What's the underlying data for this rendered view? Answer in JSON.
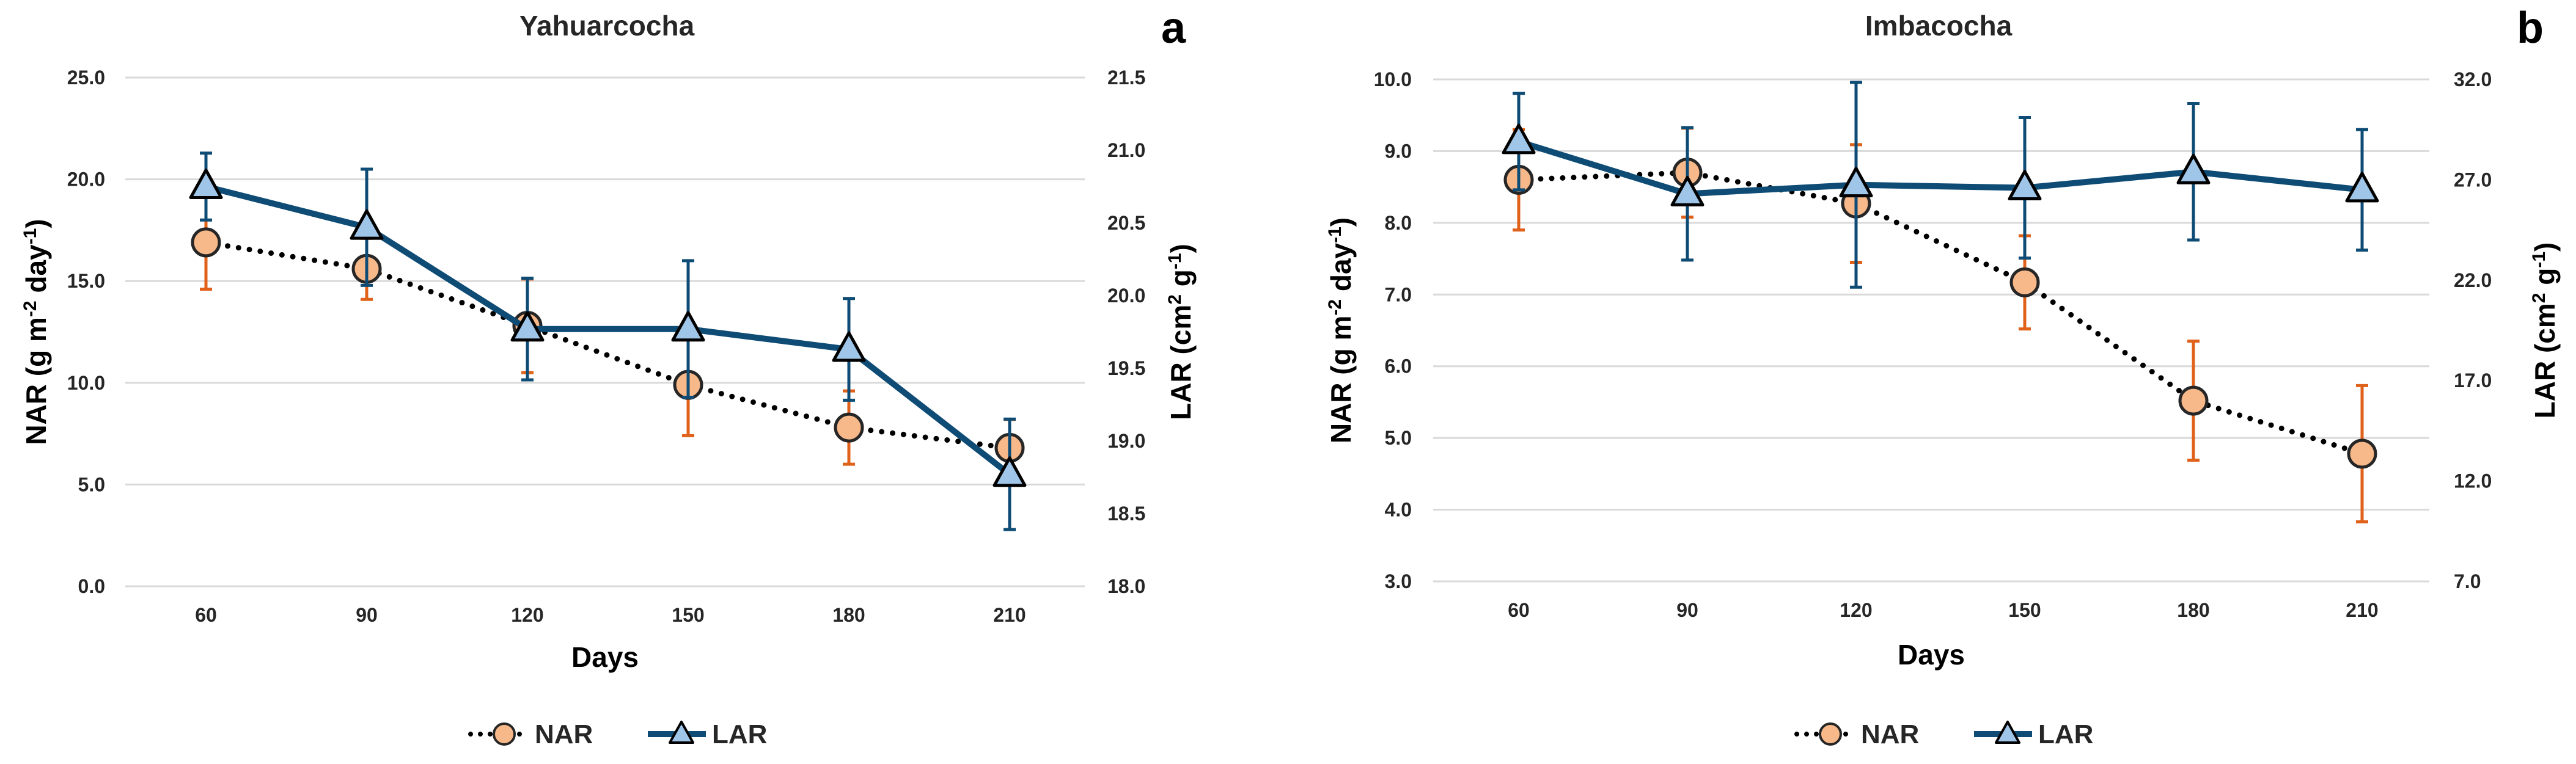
{
  "chart_data": [
    {
      "type": "line",
      "title": "Yahuarcocha",
      "panel_label": "a",
      "xlabel": "Days",
      "ylabel_left": {
        "main": "NAR (g m",
        "sup1": "-2",
        "mid": " day",
        "sup2": "-1",
        "end": ")"
      },
      "ylabel_right": {
        "main": "LAR (cm",
        "sup1": "2",
        "mid": " g",
        "sup2": "-1",
        "end": ")"
      },
      "categories": [
        "60",
        "90",
        "120",
        "150",
        "180",
        "210"
      ],
      "y_left": {
        "min": 0,
        "max": 25,
        "ticks": [
          "0.0",
          "5.0",
          "10.0",
          "15.0",
          "20.0",
          "25.0"
        ]
      },
      "y_right": {
        "min": 18,
        "max": 21.5,
        "ticks": [
          "18.0",
          "18.5",
          "19.0",
          "19.5",
          "20.0",
          "20.5",
          "21.0",
          "21.5"
        ]
      },
      "grid": true,
      "legend_position": "bottom",
      "series": [
        {
          "name": "NAR",
          "axis": "left",
          "style": "dotted",
          "marker": "circle",
          "line_color": "#000000",
          "marker_fill": "#f8b98a",
          "error_color": "#e0621a",
          "values": [
            16.9,
            15.6,
            12.8,
            9.9,
            7.8,
            6.8
          ],
          "errors": [
            2.3,
            1.5,
            2.3,
            2.5,
            1.8,
            1.4
          ]
        },
        {
          "name": "LAR",
          "axis": "right",
          "style": "solid",
          "marker": "triangle",
          "line_color": "#0f4c75",
          "marker_fill": "#9fc5e8",
          "error_color": "#0f4c75",
          "values": [
            20.75,
            20.47,
            19.77,
            19.77,
            19.63,
            18.77
          ],
          "errors": [
            0.23,
            0.4,
            0.35,
            0.47,
            0.35,
            0.38
          ]
        }
      ]
    },
    {
      "type": "line",
      "title": "Imbacocha",
      "panel_label": "b",
      "xlabel": "Days",
      "ylabel_left": {
        "main": "NAR (g m",
        "sup1": "-2",
        "mid": " day",
        "sup2": "-1",
        "end": ")"
      },
      "ylabel_right": {
        "main": "LAR (cm",
        "sup1": "2",
        "mid": " g",
        "sup2": "-1",
        "end": ")"
      },
      "categories": [
        "60",
        "90",
        "120",
        "150",
        "180",
        "210"
      ],
      "y_left": {
        "min": 3,
        "max": 10,
        "ticks": [
          "3.0",
          "4.0",
          "5.0",
          "6.0",
          "7.0",
          "8.0",
          "9.0",
          "10.0"
        ]
      },
      "y_right": {
        "min": 7,
        "max": 32,
        "ticks": [
          "7.0",
          "12.0",
          "17.0",
          "22.0",
          "27.0",
          "32.0"
        ]
      },
      "grid": true,
      "legend_position": "bottom",
      "series": [
        {
          "name": "NAR",
          "axis": "left",
          "style": "dotted",
          "marker": "circle",
          "line_color": "#000000",
          "marker_fill": "#f8b98a",
          "error_color": "#e0621a",
          "values": [
            8.6,
            8.7,
            8.27,
            7.17,
            5.52,
            4.78
          ],
          "errors": [
            0.7,
            0.62,
            0.82,
            0.65,
            0.83,
            0.95
          ]
        },
        {
          "name": "LAR",
          "axis": "right",
          "style": "solid",
          "marker": "triangle",
          "line_color": "#0f4c75",
          "marker_fill": "#9fc5e8",
          "error_color": "#0f4c75",
          "values": [
            28.9,
            26.3,
            26.75,
            26.6,
            27.4,
            26.5
          ],
          "errors": [
            2.4,
            3.3,
            5.1,
            3.5,
            3.4,
            3.0
          ]
        }
      ]
    }
  ]
}
